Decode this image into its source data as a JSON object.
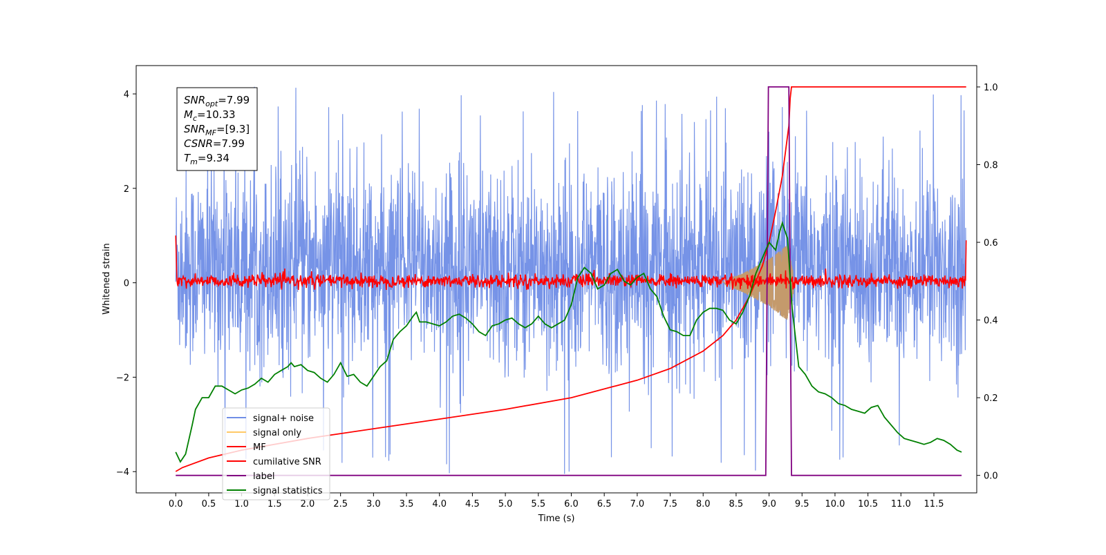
{
  "chart_data": {
    "type": "line",
    "xlabel": "Time (s)",
    "ylabel": "Whitened strain",
    "xlim": [
      -0.6,
      12.15
    ],
    "ylim": [
      -4.45,
      4.6
    ],
    "ylim_right": [
      -0.045,
      1.055
    ],
    "x_ticks": [
      0.0,
      0.5,
      1.0,
      1.5,
      2.0,
      2.5,
      3.0,
      3.5,
      4.0,
      4.5,
      5.0,
      5.5,
      6.0,
      6.5,
      7.0,
      7.5,
      8.0,
      8.5,
      9.0,
      9.5,
      10.0,
      10.5,
      11.0,
      11.5
    ],
    "x_tick_labels": [
      "0.0",
      "0.5",
      "1.0",
      "1.5",
      "2.0",
      "2.5",
      "3.0",
      "3.5",
      "4.0",
      "4.5",
      "5.0",
      "5.5",
      "6.0",
      "6.5",
      "7.0",
      "7.5",
      "8.0",
      "8.5",
      "9.0",
      "9.5",
      "10.0",
      "10.5",
      "11.0",
      "11.5"
    ],
    "y_ticks": [
      -4,
      -2,
      0,
      2,
      4
    ],
    "y_tick_labels": [
      "−4",
      "−2",
      "0",
      "2",
      "4"
    ],
    "y_ticks_right": [
      0.0,
      0.2,
      0.4,
      0.6,
      0.8,
      1.0
    ],
    "y_tick_labels_right": [
      "0.0",
      "0.2",
      "0.4",
      "0.6",
      "0.8",
      "1.0"
    ],
    "grid": false,
    "legend_position": "lower-left",
    "annotation": [
      {
        "main": "SNR",
        "sub": "opt",
        "value": "=7.99"
      },
      {
        "main": "M",
        "sub": "c",
        "value": "=10.33"
      },
      {
        "main": "SNR",
        "sub": "MF",
        "value": "=[9.3]"
      },
      {
        "main": "CSNR",
        "sub": "",
        "value": "=7.99"
      },
      {
        "main": "T",
        "sub": "m",
        "value": "=9.34"
      }
    ],
    "series": [
      {
        "name": "signal+ noise",
        "color": "#6f8de6",
        "axis": "left",
        "description": "dense noise band, roughly -2.2 to +3 with spikes to ±4",
        "x_range": [
          0.0,
          11.99
        ],
        "envelope_low": -2.2,
        "envelope_high": 2.9,
        "spike_max": 4.15,
        "spike_min": -4.05
      },
      {
        "name": "signal only",
        "color": "#ffc966",
        "axis": "left",
        "envelope": {
          "x": [
            8.3,
            8.6,
            8.8,
            9.0,
            9.1,
            9.2,
            9.28,
            9.34,
            9.4
          ],
          "amplitude": [
            0.02,
            0.2,
            0.35,
            0.5,
            0.6,
            0.72,
            0.8,
            0.4,
            0.0
          ]
        }
      },
      {
        "name": "MF",
        "color": "#ff0000",
        "axis": "left",
        "description": "noisy band around 0, approx -0.15 to +0.25, edge value 1.0",
        "edge_value": 1.0,
        "band": [
          -0.15,
          0.25
        ]
      },
      {
        "name": "cumilative SNR",
        "color": "#ff0000",
        "axis": "right",
        "x": [
          0.0,
          0.1,
          0.5,
          1.0,
          2.0,
          3.0,
          4.0,
          5.0,
          6.0,
          7.0,
          7.5,
          8.0,
          8.3,
          8.5,
          8.7,
          8.9,
          9.0,
          9.1,
          9.2,
          9.3,
          9.32,
          9.34,
          11.99
        ],
        "y": [
          0.01,
          0.02,
          0.045,
          0.065,
          0.095,
          0.12,
          0.145,
          0.17,
          0.2,
          0.245,
          0.275,
          0.32,
          0.36,
          0.4,
          0.46,
          0.54,
          0.6,
          0.68,
          0.77,
          0.9,
          0.97,
          1.0,
          1.0
        ]
      },
      {
        "name": "label",
        "color": "#800080",
        "axis": "right",
        "x": [
          0.0,
          8.95,
          8.99,
          9.3,
          9.34,
          11.92
        ],
        "y": [
          0.0,
          0.0,
          1.0,
          1.0,
          0.0,
          0.0
        ]
      },
      {
        "name": "signal statistics",
        "color": "#008000",
        "axis": "right",
        "x": [
          0.0,
          0.07,
          0.15,
          0.25,
          0.3,
          0.4,
          0.5,
          0.6,
          0.7,
          0.8,
          0.9,
          1.0,
          1.1,
          1.2,
          1.3,
          1.4,
          1.5,
          1.6,
          1.7,
          1.75,
          1.8,
          1.9,
          2.0,
          2.1,
          2.2,
          2.3,
          2.4,
          2.5,
          2.6,
          2.7,
          2.8,
          2.9,
          3.0,
          3.1,
          3.2,
          3.3,
          3.4,
          3.5,
          3.6,
          3.65,
          3.7,
          3.8,
          3.9,
          4.0,
          4.1,
          4.2,
          4.3,
          4.4,
          4.5,
          4.6,
          4.7,
          4.8,
          4.9,
          5.0,
          5.1,
          5.2,
          5.3,
          5.4,
          5.5,
          5.6,
          5.7,
          5.8,
          5.9,
          6.0,
          6.1,
          6.2,
          6.3,
          6.4,
          6.5,
          6.6,
          6.7,
          6.8,
          6.9,
          7.0,
          7.1,
          7.2,
          7.3,
          7.4,
          7.5,
          7.6,
          7.7,
          7.8,
          7.9,
          8.0,
          8.1,
          8.2,
          8.3,
          8.4,
          8.5,
          8.6,
          8.7,
          8.8,
          8.9,
          9.0,
          9.1,
          9.15,
          9.2,
          9.28,
          9.35,
          9.45,
          9.55,
          9.65,
          9.75,
          9.85,
          9.95,
          10.05,
          10.15,
          10.25,
          10.35,
          10.45,
          10.55,
          10.65,
          10.75,
          10.85,
          10.95,
          11.05,
          11.15,
          11.25,
          11.35,
          11.45,
          11.55,
          11.65,
          11.75,
          11.85,
          11.92
        ],
        "y": [
          0.06,
          0.035,
          0.055,
          0.13,
          0.17,
          0.2,
          0.2,
          0.23,
          0.23,
          0.22,
          0.21,
          0.22,
          0.225,
          0.235,
          0.25,
          0.24,
          0.26,
          0.27,
          0.28,
          0.29,
          0.28,
          0.285,
          0.27,
          0.265,
          0.25,
          0.24,
          0.26,
          0.29,
          0.255,
          0.26,
          0.24,
          0.23,
          0.255,
          0.28,
          0.295,
          0.35,
          0.37,
          0.385,
          0.41,
          0.42,
          0.395,
          0.395,
          0.39,
          0.385,
          0.395,
          0.41,
          0.415,
          0.405,
          0.39,
          0.37,
          0.36,
          0.385,
          0.39,
          0.4,
          0.405,
          0.39,
          0.38,
          0.39,
          0.41,
          0.39,
          0.38,
          0.39,
          0.4,
          0.44,
          0.51,
          0.535,
          0.52,
          0.48,
          0.49,
          0.52,
          0.53,
          0.5,
          0.49,
          0.51,
          0.52,
          0.48,
          0.46,
          0.41,
          0.375,
          0.37,
          0.36,
          0.36,
          0.4,
          0.42,
          0.43,
          0.43,
          0.425,
          0.4,
          0.39,
          0.42,
          0.46,
          0.52,
          0.56,
          0.6,
          0.58,
          0.62,
          0.65,
          0.61,
          0.43,
          0.28,
          0.26,
          0.23,
          0.215,
          0.21,
          0.2,
          0.185,
          0.18,
          0.17,
          0.165,
          0.16,
          0.175,
          0.18,
          0.15,
          0.13,
          0.11,
          0.095,
          0.09,
          0.085,
          0.08,
          0.085,
          0.095,
          0.09,
          0.08,
          0.065,
          0.06
        ]
      }
    ]
  }
}
